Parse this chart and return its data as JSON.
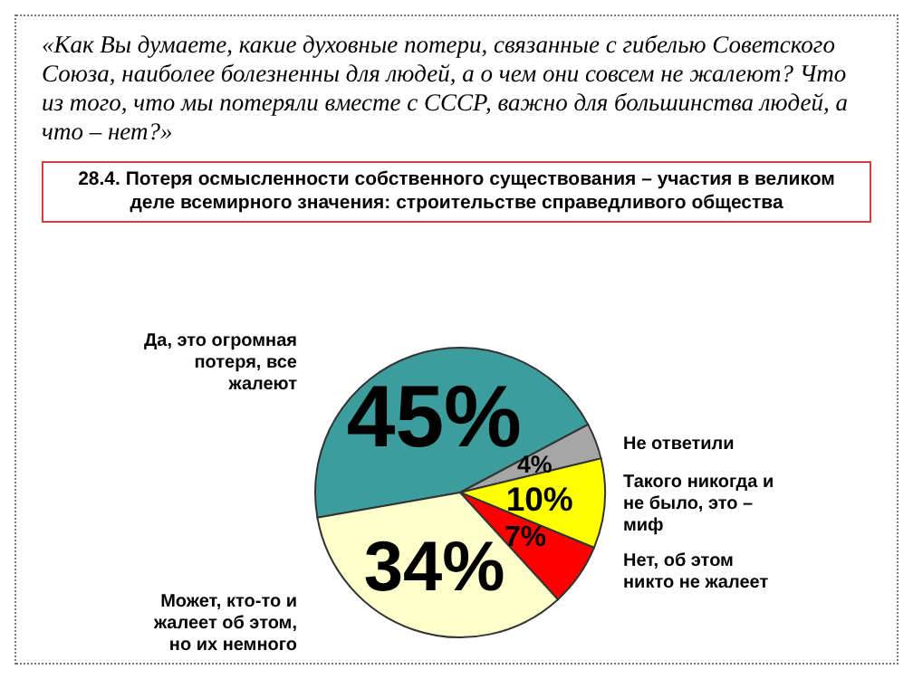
{
  "chart_data": {
    "type": "pie",
    "title": "«Как Вы думаете, какие духовные потери, связанные с гибелью Советского Союза, наиболее болезненны для людей, а о чем они совсем не жалеют? Что из того, что мы потеряли вместе с СССР, важно для большинства людей, а что – нет?»",
    "subtitle": "28.4. Потеря осмысленности собственного существования – участия в великом деле всемирного значения: строительстве справедливого общества",
    "categories": [
      "Да, это огромная потеря, все жалеют",
      "Не ответили",
      "Такого никогда и не было, это – миф",
      "Нет, об этом никто не жалеет",
      "Может, кто-то и жалеет об этом, но их немного"
    ],
    "values": [
      45,
      4,
      10,
      7,
      34
    ],
    "value_labels": [
      "45%",
      "4%",
      "10%",
      "7%",
      "34%"
    ],
    "colors": [
      "#3d9c9c",
      "#a6a6a6",
      "#ffff00",
      "#ff0000",
      "#ffffcc"
    ]
  }
}
